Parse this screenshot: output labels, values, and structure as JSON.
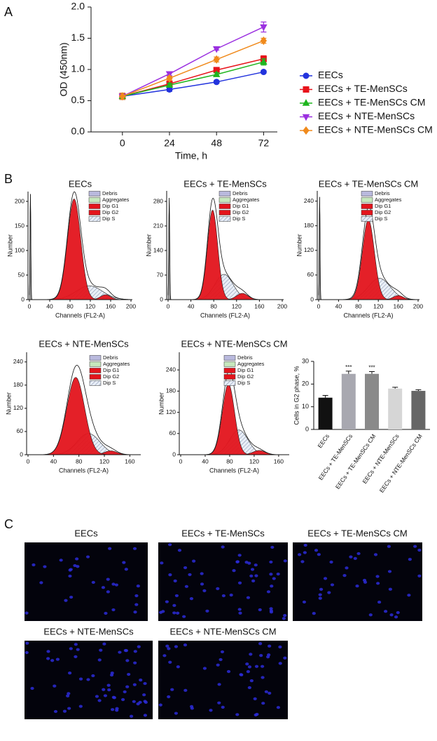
{
  "panel_labels": [
    "A",
    "B",
    "C"
  ],
  "chart_data": [
    {
      "type": "line",
      "xlabel": "Time, h",
      "ylabel": "OD (450nm)",
      "x": [
        0,
        24,
        48,
        72
      ],
      "xlim": [
        -16,
        79
      ],
      "xticks": [
        0,
        24,
        48,
        72
      ],
      "ylim": [
        0,
        2
      ],
      "yticks": [
        {
          "value": 0,
          "label": "0.0"
        },
        {
          "value": 0.5,
          "label": "0.5"
        },
        {
          "value": 1,
          "label": "1.0"
        },
        {
          "value": 1.5,
          "label": "1.5"
        },
        {
          "value": 2,
          "label": "2.0"
        }
      ],
      "legend": "right",
      "series": [
        {
          "name": "EECs",
          "color": "#2233dd",
          "marker": "circle",
          "values": [
            0.57,
            0.68,
            0.8,
            0.96
          ],
          "errors": [
            0.05,
            0.03,
            0.02,
            0.02
          ]
        },
        {
          "name": "EECs + TE-MenSCs",
          "color": "#e8131b",
          "marker": "square",
          "values": [
            0.57,
            0.77,
            0.99,
            1.17
          ],
          "errors": [
            0.05,
            0.03,
            0.03,
            0.05
          ]
        },
        {
          "name": "EECs + TE-MenSCs CM",
          "color": "#1fb51f",
          "marker": "triangle",
          "values": [
            0.57,
            0.75,
            0.92,
            1.12
          ],
          "errors": [
            0.05,
            0.03,
            0.03,
            0.05
          ]
        },
        {
          "name": "EECs + NTE-MenSCs",
          "color": "#9b30e0",
          "marker": "triangle-down",
          "values": [
            0.57,
            0.93,
            1.33,
            1.68
          ],
          "errors": [
            0.05,
            0.03,
            0.02,
            0.08
          ]
        },
        {
          "name": "EECs + NTE-MenSCs CM",
          "color": "#f08a1c",
          "marker": "diamond",
          "values": [
            0.57,
            0.86,
            1.16,
            1.46
          ],
          "errors": [
            0.05,
            0.03,
            0.04,
            0.04
          ]
        }
      ]
    },
    {
      "type": "flow",
      "title": "EECs",
      "xlabel": "Channels (FL2-A)",
      "ylabel": "Number",
      "xlim": [
        0,
        200
      ],
      "xticks": [
        0,
        40,
        80,
        120,
        160,
        200
      ],
      "ylim": [
        0,
        220
      ],
      "yticks": [
        0,
        50,
        100,
        150,
        200
      ],
      "legend": [
        {
          "name": "Debris",
          "color": "#b9b9dd"
        },
        {
          "name": "Aggregates",
          "color": "#c6e8bd"
        },
        {
          "name": "Dip G1",
          "color": "#e3141c"
        },
        {
          "name": "Dip G2",
          "color": "#e3141c"
        },
        {
          "name": "Dip S",
          "color": "#dde6f2",
          "pattern": "hatch"
        }
      ],
      "components": [
        {
          "name": "Debris",
          "center": 2,
          "height": 215,
          "sd": 0.8
        },
        {
          "name": "Dip S",
          "center": 118,
          "height": 28,
          "sd": 26
        },
        {
          "name": "Dip G2",
          "center": 150,
          "height": 10,
          "sd": 10
        },
        {
          "name": "Dip G1",
          "center": 88,
          "height": 205,
          "sd": 13
        }
      ]
    },
    {
      "type": "flow",
      "title": "EECs + TE-MenSCs",
      "xlabel": "Channels (FL2-A)",
      "ylabel": "Number",
      "xlim": [
        0,
        200
      ],
      "xticks": [
        0,
        40,
        80,
        120,
        160,
        200
      ],
      "ylim": [
        0,
        310
      ],
      "yticks": [
        0,
        70,
        140,
        210,
        280
      ],
      "legend": [
        {
          "name": "Debris",
          "color": "#b9b9dd"
        },
        {
          "name": "Aggregates",
          "color": "#c6e8bd"
        },
        {
          "name": "Dip G1",
          "color": "#e3141c"
        },
        {
          "name": "Dip G2",
          "color": "#e3141c"
        },
        {
          "name": "Dip S",
          "color": "#dde6f2",
          "pattern": "hatch"
        }
      ],
      "components": [
        {
          "name": "Debris",
          "center": 2,
          "height": 290,
          "sd": 0.8
        },
        {
          "name": "Dip S",
          "center": 98,
          "height": 72,
          "sd": 16
        },
        {
          "name": "Dip G2",
          "center": 130,
          "height": 18,
          "sd": 10
        },
        {
          "name": "Dip G1",
          "center": 78,
          "height": 255,
          "sd": 9
        }
      ]
    },
    {
      "type": "flow",
      "title": "EECs + TE-MenSCs CM",
      "xlabel": "Channels (FL2-A)",
      "ylabel": "Number",
      "xlim": [
        0,
        200
      ],
      "xticks": [
        0,
        40,
        80,
        120,
        160,
        200
      ],
      "ylim": [
        0,
        265
      ],
      "yticks": [
        0,
        60,
        120,
        180,
        240
      ],
      "legend": [
        {
          "name": "Debris",
          "color": "#b9b9dd"
        },
        {
          "name": "Aggregates",
          "color": "#c6e8bd"
        },
        {
          "name": "Dip G1",
          "color": "#e3141c"
        },
        {
          "name": "Dip G2",
          "color": "#e3141c"
        },
        {
          "name": "Dip S",
          "color": "#dde6f2",
          "pattern": "hatch"
        }
      ],
      "components": [
        {
          "name": "Debris",
          "center": 2,
          "height": 250,
          "sd": 0.8
        },
        {
          "name": "Dip S",
          "center": 122,
          "height": 52,
          "sd": 22
        },
        {
          "name": "Dip G2",
          "center": 160,
          "height": 10,
          "sd": 10
        },
        {
          "name": "Dip G1",
          "center": 100,
          "height": 195,
          "sd": 12
        }
      ]
    },
    {
      "type": "flow",
      "title": "EECs + NTE-MenSCs",
      "xlabel": "Channels (FL2-A)",
      "ylabel": "Number",
      "xlim": [
        0,
        175
      ],
      "xticks": [
        0,
        40,
        80,
        120,
        160
      ],
      "ylim": [
        0,
        265
      ],
      "yticks": [
        0,
        60,
        120,
        180,
        240
      ],
      "legend": [
        {
          "name": "Debris",
          "color": "#b9b9dd"
        },
        {
          "name": "Aggregates",
          "color": "#c6e8bd"
        },
        {
          "name": "Dip G1",
          "color": "#e3141c"
        },
        {
          "name": "Dip G2",
          "color": "#e3141c"
        },
        {
          "name": "Dip S",
          "color": "#dde6f2",
          "pattern": "hatch"
        }
      ],
      "components": [
        {
          "name": "Dip S",
          "center": 95,
          "height": 55,
          "sd": 18
        },
        {
          "name": "Dip G2",
          "center": 130,
          "height": 10,
          "sd": 10
        },
        {
          "name": "Dip G1",
          "center": 75,
          "height": 200,
          "sd": 14
        }
      ]
    },
    {
      "type": "flow",
      "title": "EECs + NTE-MenSCs CM",
      "xlabel": "Channels (FL2-A)",
      "ylabel": "Number",
      "xlim": [
        0,
        175
      ],
      "xticks": [
        0,
        40,
        80,
        120,
        160
      ],
      "ylim": [
        0,
        290
      ],
      "yticks": [
        0,
        60,
        120,
        180,
        240
      ],
      "legend": [
        {
          "name": "Debris",
          "color": "#b9b9dd"
        },
        {
          "name": "Aggregates",
          "color": "#c6e8bd"
        },
        {
          "name": "Dip G1",
          "color": "#e3141c"
        },
        {
          "name": "Dip G2",
          "color": "#e3141c"
        },
        {
          "name": "Dip S",
          "color": "#dde6f2",
          "pattern": "hatch"
        }
      ],
      "components": [
        {
          "name": "Dip S",
          "center": 95,
          "height": 70,
          "sd": 15
        },
        {
          "name": "Dip G2",
          "center": 128,
          "height": 12,
          "sd": 10
        },
        {
          "name": "Dip G1",
          "center": 78,
          "height": 200,
          "sd": 10
        }
      ]
    },
    {
      "type": "bar",
      "ylabel": "Cells in G2 phase, %",
      "categories": [
        "EECs",
        "EECs + TE-MenSCs",
        "EECs + TE-MenSCs CM",
        "EECs + NTE-MenSCs",
        "EECs + NTE-MenSCs CM"
      ],
      "values": [
        14,
        24.5,
        24.5,
        18,
        17
      ],
      "errors": [
        1,
        1.2,
        1,
        0.6,
        0.5
      ],
      "colors": [
        "#111111",
        "#a8a8b0",
        "#8a8a8a",
        "#d6d6d6",
        "#666666"
      ],
      "value_labels": [
        null,
        "***",
        "***",
        null,
        null
      ],
      "ylim": [
        0,
        30
      ],
      "yticks": [
        0,
        10,
        20,
        30
      ]
    }
  ],
  "images": [
    {
      "title": "EECs"
    },
    {
      "title": "EECs + TE-MenSCs"
    },
    {
      "title": "EECs + TE-MenSCs CM"
    },
    {
      "title": "EECs + NTE-MenSCs"
    },
    {
      "title": "EECs + NTE-MenSCs CM"
    }
  ]
}
